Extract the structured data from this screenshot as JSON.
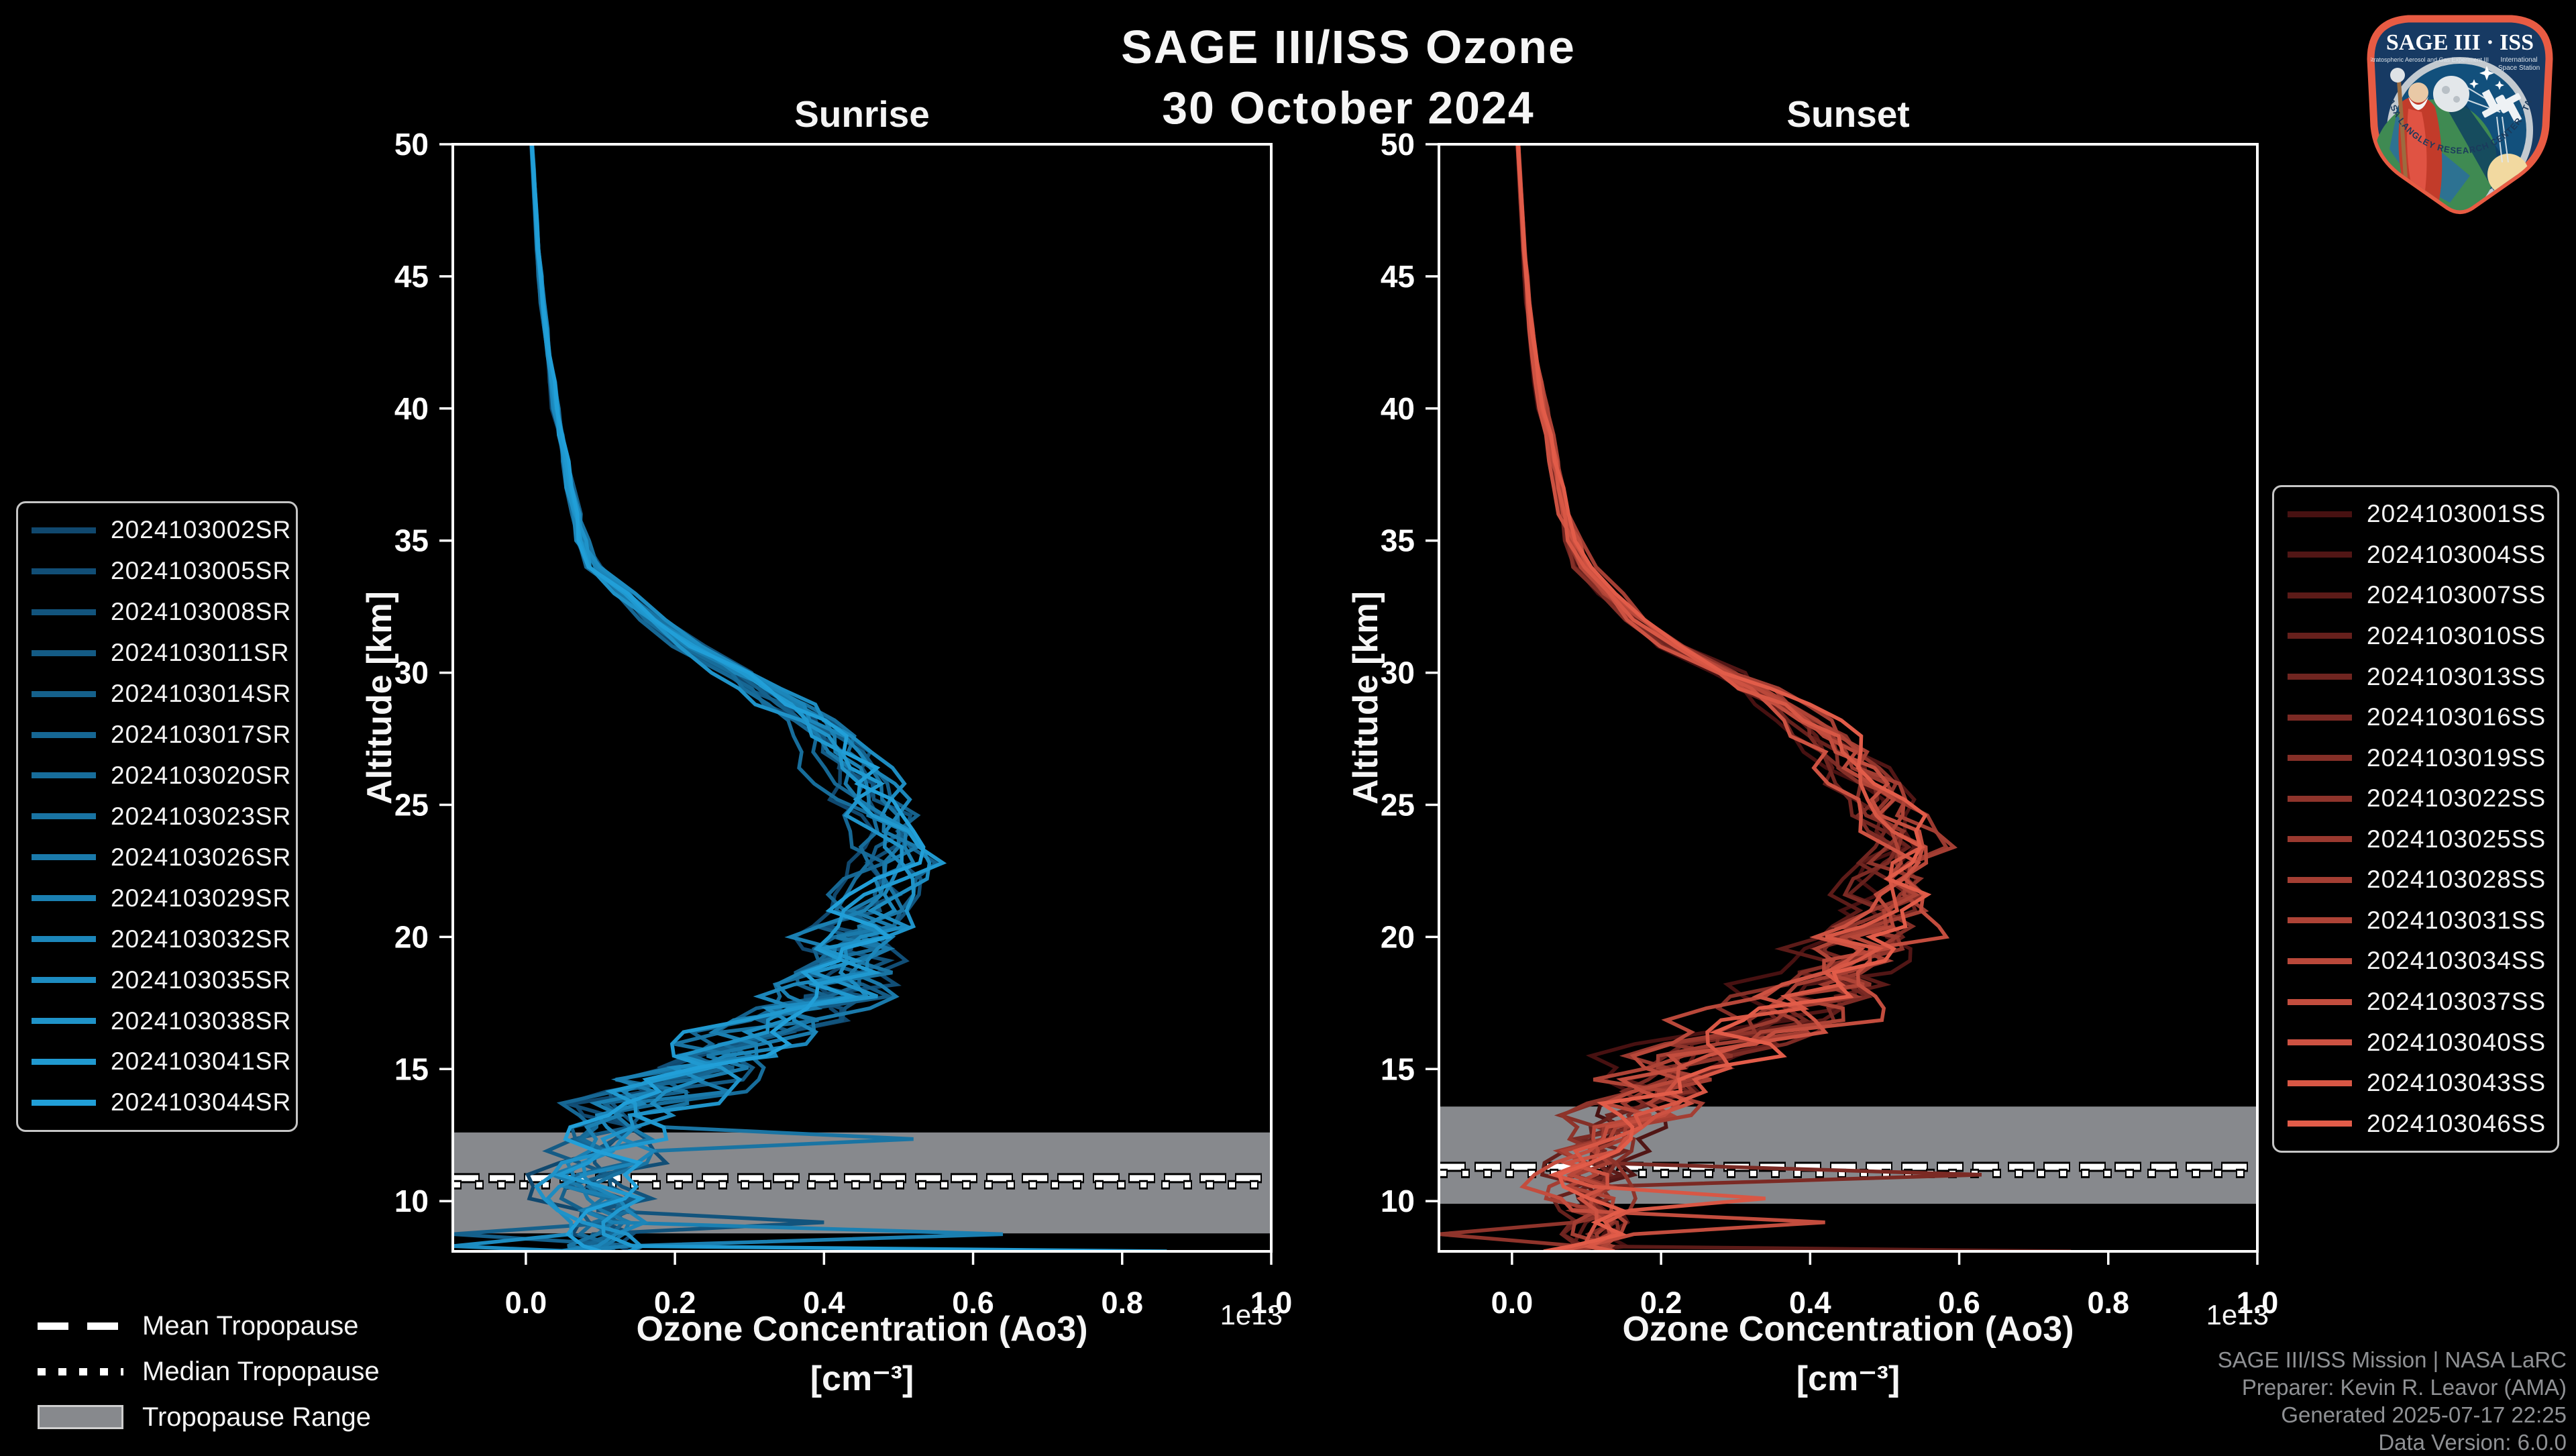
{
  "header": {
    "title": "SAGE III/ISS Ozone",
    "date": "30 October 2024"
  },
  "chart_data": {
    "type": "line",
    "xlabel": "Ozone Concentration (Ao3)",
    "xunit": "[cm⁻³]",
    "offset_label": "1e13",
    "ylabel": "Altitude [km]",
    "xlim": [
      -0.098,
      1.0
    ],
    "ylim": [
      8.1,
      50
    ],
    "xticks": [
      0.0,
      0.2,
      0.4,
      0.6,
      0.8,
      1.0
    ],
    "yticks": [
      10,
      15,
      20,
      25,
      30,
      35,
      40,
      45,
      50
    ],
    "grid": false,
    "panels": [
      {
        "id": "sunrise",
        "title": "Sunrise",
        "color_dark": "#10486e",
        "color_bright": "#219fd8",
        "series": [
          "2024103002SR",
          "2024103005SR",
          "2024103008SR",
          "2024103011SR",
          "2024103014SR",
          "2024103017SR",
          "2024103020SR",
          "2024103023SR",
          "2024103026SR",
          "2024103029SR",
          "2024103032SR",
          "2024103035SR",
          "2024103038SR",
          "2024103041SR",
          "2024103044SR"
        ],
        "tropopause": {
          "mean_km": 10.87,
          "median_km": 10.62,
          "range_km": [
            8.78,
            12.6
          ]
        },
        "base_profile": {
          "altitude_km": [
            50,
            48,
            46,
            44,
            42,
            40,
            38,
            36,
            35,
            34,
            33,
            32,
            31,
            30,
            29,
            28,
            27,
            26,
            25,
            24,
            23,
            22,
            21,
            20,
            19,
            18,
            17,
            16,
            15,
            14,
            13,
            12,
            11,
            10.5,
            10,
            9.5,
            9,
            8.6,
            8.3,
            8.1
          ],
          "concentration_1e13": [
            0.008,
            0.012,
            0.016,
            0.022,
            0.03,
            0.04,
            0.052,
            0.066,
            0.075,
            0.09,
            0.13,
            0.17,
            0.22,
            0.28,
            0.34,
            0.39,
            0.42,
            0.44,
            0.455,
            0.48,
            0.495,
            0.48,
            0.46,
            0.44,
            0.44,
            0.4,
            0.34,
            0.27,
            0.21,
            0.165,
            0.13,
            0.105,
            0.09,
            0.09,
            0.1,
            0.1,
            0.105,
            0.11,
            0.1,
            0.09
          ]
        },
        "spikes": [
          {
            "series": 9,
            "alt": 8.55,
            "value": 0.64
          },
          {
            "series": 13,
            "alt": 8.15,
            "value": 0.86
          },
          {
            "series": 4,
            "alt": 8.9,
            "value": -0.098
          },
          {
            "series": 7,
            "alt": 12.35,
            "value": 0.52
          },
          {
            "series": 2,
            "alt": 9.3,
            "value": 0.4
          },
          {
            "series": 11,
            "alt": 8.3,
            "value": -0.098
          }
        ]
      },
      {
        "id": "sunset",
        "title": "Sunset",
        "color_dark": "#471111",
        "color_bright": "#e25c49",
        "series": [
          "2024103001SS",
          "2024103004SS",
          "2024103007SS",
          "2024103010SS",
          "2024103013SS",
          "2024103016SS",
          "2024103019SS",
          "2024103022SS",
          "2024103025SS",
          "2024103028SS",
          "2024103031SS",
          "2024103034SS",
          "2024103037SS",
          "2024103040SS",
          "2024103043SS",
          "2024103046SS"
        ],
        "tropopause": {
          "mean_km": 11.3,
          "median_km": 11.05,
          "range_km": [
            9.9,
            13.58
          ]
        },
        "base_profile": {
          "altitude_km": [
            50,
            48,
            46,
            44,
            42,
            40,
            38,
            36,
            35,
            34,
            33,
            32,
            31,
            30,
            29,
            28,
            27,
            26,
            25,
            24,
            23,
            22,
            21,
            20,
            19,
            18,
            17,
            16,
            15,
            14,
            13,
            12,
            11,
            10.5,
            10,
            9.5,
            9,
            8.6,
            8.3,
            8.1
          ],
          "concentration_1e13": [
            0.008,
            0.012,
            0.016,
            0.022,
            0.03,
            0.042,
            0.055,
            0.07,
            0.08,
            0.095,
            0.125,
            0.165,
            0.215,
            0.285,
            0.35,
            0.4,
            0.44,
            0.47,
            0.49,
            0.51,
            0.525,
            0.52,
            0.5,
            0.47,
            0.45,
            0.41,
            0.35,
            0.28,
            0.215,
            0.17,
            0.135,
            0.11,
            0.1,
            0.095,
            0.1,
            0.105,
            0.105,
            0.11,
            0.105,
            0.095
          ]
        },
        "spikes": [
          {
            "series": 2,
            "alt": 8.15,
            "value": 0.75
          },
          {
            "series": 5,
            "alt": 11.1,
            "value": 0.63
          },
          {
            "series": 14,
            "alt": 10.0,
            "value": 0.34
          },
          {
            "series": 7,
            "alt": 8.6,
            "value": -0.098
          },
          {
            "series": 12,
            "alt": 9.4,
            "value": 0.42
          }
        ]
      }
    ]
  },
  "tropopause_legend": {
    "mean": "Mean Tropopause",
    "median": "Median Tropopause",
    "range": "Tropopause Range"
  },
  "footer": {
    "line1": "SAGE III/ISS Mission | NASA LaRC",
    "line2": "Preparer: Kevin R. Leavor (AMA)",
    "line3": "Generated 2025-07-17 22:25",
    "line4": "Data Version: 6.0.0"
  },
  "logo": {
    "title": "SAGE III · ISS",
    "sub_left": "Stratospheric Aerosol and Gas Experiment III",
    "sub_right_1": "International",
    "sub_right_2": "Space Station",
    "ring_text": "BALL · NASA LANGLEY RESEARCH CENTER · TAS-I · ESA"
  },
  "colors": {
    "background": "#000000",
    "frame": "#ffffff",
    "tropopause_band": "#87898d",
    "footer_text": "#8f9194",
    "logo_border": "#e85b43",
    "logo_bg": "#173a63"
  }
}
